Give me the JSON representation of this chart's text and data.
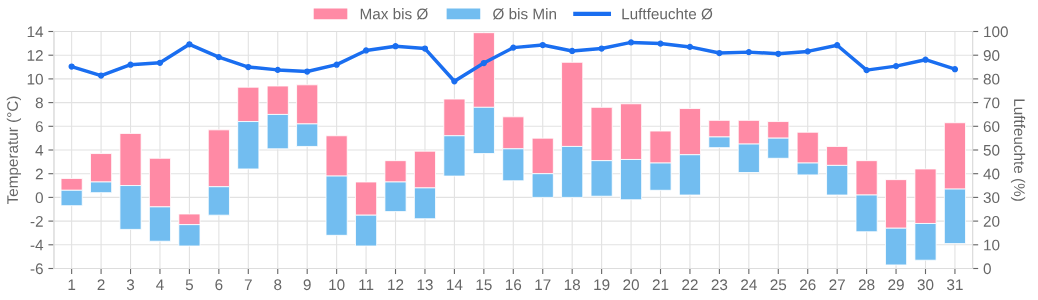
{
  "chart_data": {
    "type": "bar",
    "ylabel": "Temperatur (°C)",
    "y2label": "Luftfeuchte (%)",
    "categories": [
      "1",
      "2",
      "3",
      "4",
      "5",
      "6",
      "7",
      "8",
      "9",
      "10",
      "11",
      "12",
      "13",
      "14",
      "15",
      "16",
      "17",
      "18",
      "19",
      "20",
      "21",
      "22",
      "23",
      "24",
      "25",
      "26",
      "27",
      "28",
      "29",
      "30",
      "31"
    ],
    "series": [
      {
        "name": "Max bis Ø",
        "color": "#ff8aa5",
        "base": [
          0.6,
          1.3,
          1.0,
          -0.8,
          -2.3,
          0.9,
          6.4,
          7.0,
          6.2,
          1.8,
          -1.5,
          1.3,
          0.8,
          5.2,
          7.6,
          4.1,
          2.0,
          4.3,
          3.1,
          3.2,
          2.9,
          3.6,
          5.1,
          4.5,
          5.0,
          2.9,
          2.7,
          0.2,
          -2.6,
          -2.2,
          0.7
        ],
        "values": [
          1.0,
          2.4,
          4.4,
          4.1,
          0.9,
          4.8,
          2.9,
          2.4,
          3.3,
          3.4,
          2.8,
          1.8,
          3.1,
          3.1,
          6.3,
          2.7,
          3.0,
          7.1,
          4.5,
          4.7,
          2.7,
          3.9,
          1.4,
          2.0,
          1.4,
          2.6,
          1.6,
          2.9,
          4.1,
          4.6,
          5.6
        ]
      },
      {
        "name": "Ø bis Min",
        "color": "#72bdf0",
        "base": [
          -0.7,
          0.4,
          -2.7,
          -3.7,
          -4.1,
          -1.5,
          2.4,
          4.1,
          4.3,
          -3.2,
          -4.1,
          -1.2,
          -1.8,
          1.8,
          3.7,
          1.4,
          0.0,
          0.0,
          0.1,
          -0.2,
          0.6,
          0.2,
          4.2,
          2.1,
          3.3,
          1.9,
          0.2,
          -2.9,
          -5.7,
          -5.3,
          -3.9
        ],
        "values": [
          1.3,
          0.9,
          3.7,
          2.9,
          1.8,
          2.4,
          4.0,
          2.9,
          1.9,
          5.0,
          2.6,
          2.5,
          2.6,
          3.4,
          3.9,
          2.7,
          2.0,
          4.3,
          3.0,
          3.4,
          2.3,
          3.4,
          0.9,
          2.4,
          1.7,
          1.0,
          2.5,
          3.1,
          3.1,
          3.1,
          4.6
        ]
      },
      {
        "name": "Luftfeuchte Ø",
        "color": "#1a6ef0",
        "type": "line",
        "axis": "y2",
        "marker": "circle",
        "values": [
          85.2,
          81.4,
          86.0,
          86.8,
          94.6,
          89.2,
          85.0,
          83.8,
          83.1,
          86.0,
          92.0,
          93.8,
          92.8,
          79.0,
          86.7,
          93.2,
          94.3,
          91.8,
          92.8,
          95.4,
          94.9,
          93.5,
          90.9,
          91.3,
          90.6,
          91.6,
          94.2,
          83.7,
          85.4,
          88.1,
          84.1
        ]
      }
    ],
    "ylim": [
      -6,
      14
    ],
    "yticks": [
      -6,
      -4,
      -2,
      0,
      2,
      4,
      6,
      8,
      10,
      12,
      14
    ],
    "y2lim": [
      0,
      100
    ],
    "y2ticks": [
      0,
      10,
      20,
      30,
      40,
      50,
      60,
      70,
      80,
      90,
      100
    ],
    "grid": true,
    "legend": "top"
  }
}
